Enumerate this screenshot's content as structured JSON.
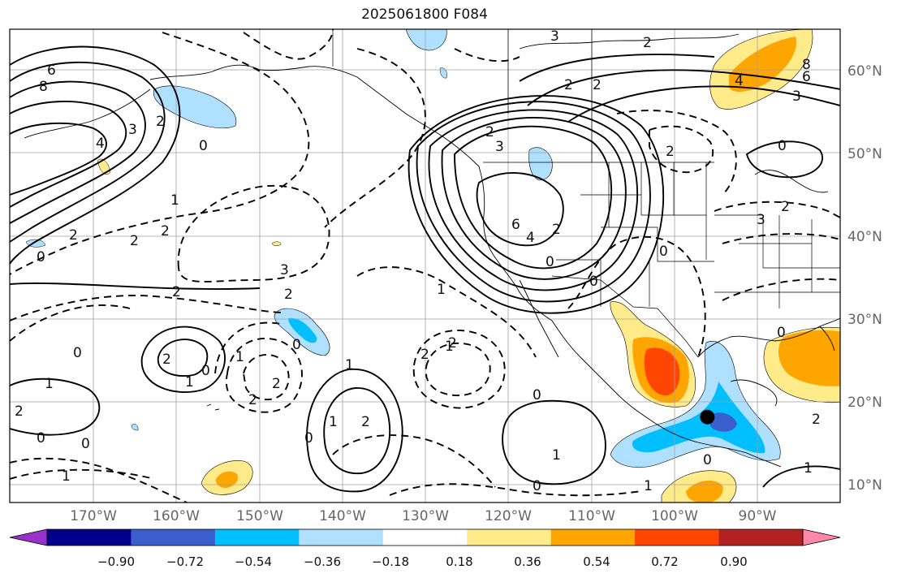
{
  "title": "2025061800 F084",
  "lon_labels": [
    "170°W",
    "160°W",
    "150°W",
    "140°W",
    "130°W",
    "120°W",
    "110°W",
    "100°W",
    "90°W"
  ],
  "lat_labels": [
    "60°N",
    "50°N",
    "40°N",
    "30°N",
    "20°N",
    "10°N"
  ],
  "colorbar": {
    "ticks": [
      "−0.90",
      "−0.72",
      "−0.54",
      "−0.36",
      "−0.18",
      "0.18",
      "0.36",
      "0.54",
      "0.72",
      "0.90"
    ],
    "colors": [
      "#9932cc",
      "#00008b",
      "#3a5fcd",
      "#00bfff",
      "#b0e0ff",
      "#ffffff",
      "#ffeb8a",
      "#ffa500",
      "#ff4500",
      "#b22222",
      "#ff88aa"
    ]
  },
  "colors": {
    "land_outline": "#000000",
    "grid": "#a0a0a0",
    "contour": "#000000"
  },
  "contour_labels": [
    "6",
    "8",
    "4",
    "3",
    "2",
    "2",
    "0",
    "1",
    "2",
    "2",
    "3",
    "2",
    "0",
    "2",
    "1",
    "0",
    "1",
    "2",
    "2",
    "0",
    "1",
    "1",
    "2",
    "0",
    "2",
    "0",
    "2",
    "1",
    "0",
    "1",
    "3",
    "2",
    "2",
    "6",
    "4",
    "2",
    "0",
    "2",
    "3",
    "2",
    "1",
    "2",
    "0",
    "0",
    "2",
    "1",
    "0",
    "0",
    "1",
    "0",
    "8",
    "6",
    "4",
    "3",
    "2",
    "2",
    "0",
    "0",
    "3",
    "1",
    "0",
    "1",
    "2"
  ],
  "marker": {
    "lon": -96.0,
    "lat": 19.0
  }
}
